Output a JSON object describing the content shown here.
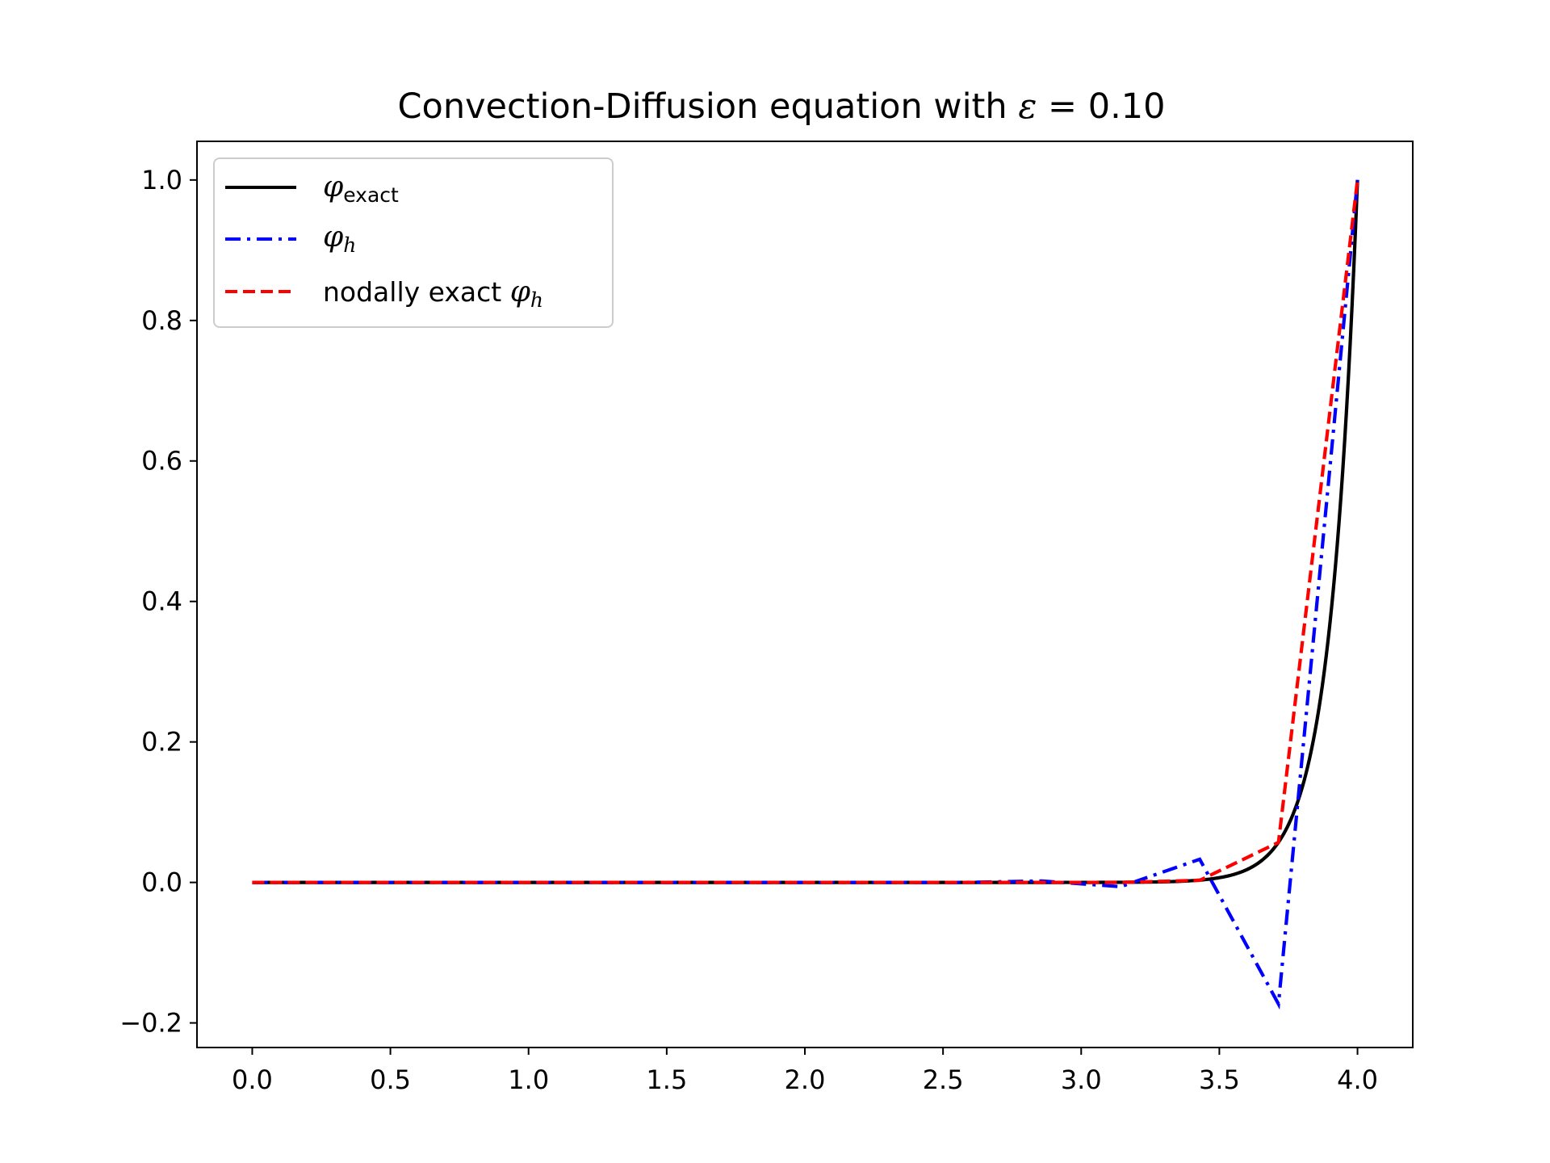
{
  "chart_data": {
    "type": "line",
    "title": {
      "text": "Convection-Diffusion equation with ",
      "symbol": "ε",
      "operator": " = ",
      "value": "0.10"
    },
    "xlabel": "",
    "ylabel": "",
    "xlim": [
      -0.2,
      4.2
    ],
    "ylim": [
      -0.235,
      1.055
    ],
    "x_ticks": [
      "0.0",
      "0.5",
      "1.0",
      "1.5",
      "2.0",
      "2.5",
      "3.0",
      "3.5",
      "4.0"
    ],
    "x_tick_values": [
      0,
      0.5,
      1,
      1.5,
      2,
      2.5,
      3,
      3.5,
      4
    ],
    "y_ticks": [
      "−0.2",
      "0.0",
      "0.2",
      "0.4",
      "0.6",
      "0.8",
      "1.0"
    ],
    "y_tick_values": [
      -0.2,
      0,
      0.2,
      0.4,
      0.6,
      0.8,
      1
    ],
    "grid": false,
    "legend_position": "top-left",
    "legend": [
      {
        "symbol": "φ",
        "subscript": "exact",
        "suffix": "",
        "prefix": ""
      },
      {
        "symbol": "φ",
        "subscript": "h",
        "suffix": "",
        "prefix": ""
      },
      {
        "symbol": "φ",
        "subscript": "h",
        "suffix": "",
        "prefix": "nodally exact "
      }
    ],
    "series": [
      {
        "style": "solid",
        "color": "#000000",
        "function": "exact",
        "epsilon": 0.1,
        "x_range": [
          0,
          4
        ]
      },
      {
        "style": "dashdot",
        "color": "#0000ff",
        "x": [
          0,
          0.286,
          0.571,
          0.857,
          1.143,
          1.429,
          1.714,
          2.0,
          2.286,
          2.571,
          2.857,
          3.143,
          3.429,
          3.714,
          4.0
        ],
        "y": [
          0,
          0,
          0,
          0,
          0,
          0,
          0,
          0,
          0,
          0,
          0.002,
          -0.006,
          0.033,
          -0.173,
          1.0
        ]
      },
      {
        "style": "dashed",
        "color": "#ff0000",
        "x": [
          0,
          0.286,
          0.571,
          0.857,
          1.143,
          1.429,
          1.714,
          2.0,
          2.286,
          2.571,
          2.857,
          3.143,
          3.429,
          3.714,
          4.0
        ],
        "y": [
          0,
          0,
          0,
          0,
          0,
          0,
          0,
          0,
          0,
          0,
          0,
          0,
          0.003,
          0.057,
          1.0
        ]
      }
    ]
  }
}
